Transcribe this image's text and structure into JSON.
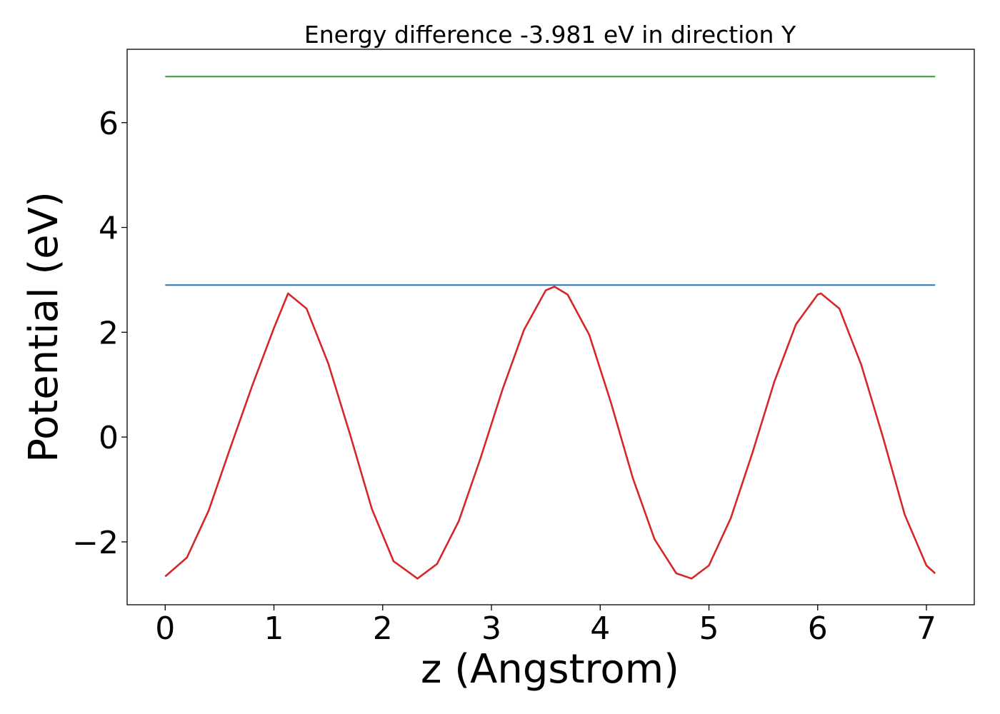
{
  "chart_data": {
    "type": "line",
    "title": "Energy difference -3.981 eV in direction Y",
    "xlabel": "z (Angstrom)",
    "ylabel": "Potential (eV)",
    "xlim": [
      -0.35,
      7.44
    ],
    "ylim": [
      -3.2,
      7.4
    ],
    "x_ticks": [
      0,
      1,
      2,
      3,
      4,
      5,
      6,
      7
    ],
    "x_tick_labels": [
      "0",
      "1",
      "2",
      "3",
      "4",
      "5",
      "6",
      "7"
    ],
    "y_ticks": [
      -2,
      0,
      2,
      4,
      6
    ],
    "y_tick_labels": [
      "−2",
      "0",
      "2",
      "4",
      "6"
    ],
    "grid": false,
    "series": [
      {
        "color": "#d62728",
        "style": "solid",
        "x": [
          0.0,
          0.2,
          0.4,
          0.6,
          0.8,
          1.0,
          1.13,
          1.3,
          1.5,
          1.7,
          1.9,
          2.1,
          2.32,
          2.5,
          2.7,
          2.9,
          3.1,
          3.3,
          3.5,
          3.58,
          3.7,
          3.9,
          4.1,
          4.3,
          4.5,
          4.7,
          4.84,
          5.0,
          5.2,
          5.4,
          5.6,
          5.8,
          6.0,
          6.03,
          6.2,
          6.4,
          6.6,
          6.8,
          7.0,
          7.08
        ],
        "y": [
          -2.66,
          -2.3,
          -1.4,
          -0.2,
          0.98,
          2.08,
          2.74,
          2.45,
          1.4,
          0.05,
          -1.37,
          -2.37,
          -2.7,
          -2.42,
          -1.6,
          -0.4,
          0.9,
          2.05,
          2.8,
          2.87,
          2.72,
          1.95,
          0.65,
          -0.78,
          -1.95,
          -2.6,
          -2.7,
          -2.45,
          -1.55,
          -0.3,
          1.05,
          2.15,
          2.72,
          2.74,
          2.45,
          1.38,
          0.0,
          -1.48,
          -2.45,
          -2.6
        ]
      },
      {
        "color": "#1f77b4",
        "style": "solid",
        "x": [
          0.0,
          7.08
        ],
        "y": [
          2.9,
          2.9
        ]
      },
      {
        "color": "#2ca02c",
        "style": "solid",
        "x": [
          0.0,
          7.08
        ],
        "y": [
          6.88,
          6.88
        ]
      }
    ]
  }
}
